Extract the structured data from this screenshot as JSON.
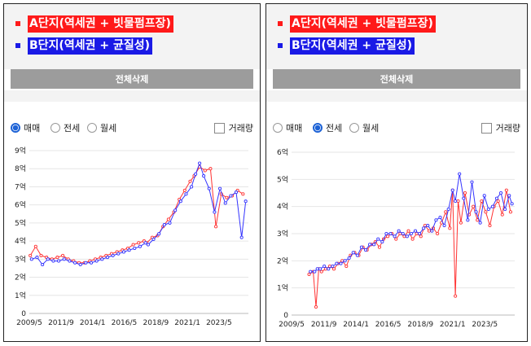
{
  "legend": {
    "a_label": "A단지(역세권 + 빗물펌프장)",
    "b_label": "B단지(역세권 + 균질성)",
    "a_color": "#ff1a1a",
    "b_color": "#1a1ae6"
  },
  "button": {
    "clear_all": "전체삭제"
  },
  "options": {
    "sale": "매매",
    "jeonse": "전세",
    "monthly": "월세",
    "volume": "거래량"
  },
  "left": {
    "selected": "sale"
  },
  "right": {
    "selected": "jeonse"
  },
  "chart_data": [
    {
      "type": "line",
      "title": "",
      "ylim": [
        0,
        9
      ],
      "y_ticks": [
        "0",
        "1억",
        "2억",
        "3억",
        "4억",
        "5억",
        "6억",
        "7억",
        "8억",
        "9억"
      ],
      "x_ticks": [
        "2009/5",
        "2011/9",
        "2014/1",
        "2016/5",
        "2018/9",
        "2021/1",
        "2023/5"
      ],
      "x_tick_years": [
        2009.33,
        2011.67,
        2014.0,
        2016.33,
        2018.67,
        2021.0,
        2023.33
      ],
      "xlim": [
        2009.33,
        2025.5
      ],
      "series": [
        {
          "color": "#ff3333",
          "x": [
            2009.4,
            2009.8,
            2010.2,
            2010.6,
            2011.0,
            2011.4,
            2011.8,
            2012.2,
            2012.6,
            2013.0,
            2013.4,
            2013.8,
            2014.2,
            2014.6,
            2015.0,
            2015.4,
            2015.8,
            2016.2,
            2016.6,
            2017.0,
            2017.4,
            2017.8,
            2018.0,
            2018.4,
            2018.8,
            2019.2,
            2019.6,
            2020.0,
            2020.4,
            2020.8,
            2021.2,
            2021.5,
            2021.9,
            2022.3,
            2022.7,
            2023.1,
            2023.5,
            2023.9,
            2024.3,
            2024.7,
            2025.1
          ],
          "y": [
            3.2,
            3.7,
            3.2,
            3.1,
            3.0,
            3.1,
            3.2,
            3.0,
            2.9,
            2.8,
            2.8,
            2.9,
            3.0,
            3.1,
            3.2,
            3.3,
            3.4,
            3.5,
            3.6,
            3.8,
            3.9,
            4.0,
            3.9,
            4.2,
            4.3,
            4.8,
            5.2,
            5.6,
            6.3,
            6.8,
            7.3,
            7.6,
            8.1,
            7.9,
            8.0,
            4.8,
            6.6,
            6.4,
            6.5,
            6.8,
            6.6
          ]
        },
        {
          "color": "#3333ff",
          "x": [
            2009.5,
            2009.9,
            2010.3,
            2010.7,
            2011.1,
            2011.5,
            2011.9,
            2012.3,
            2012.7,
            2013.1,
            2013.5,
            2013.9,
            2014.3,
            2014.7,
            2015.1,
            2015.5,
            2015.9,
            2016.3,
            2016.7,
            2017.1,
            2017.5,
            2017.9,
            2018.1,
            2018.5,
            2018.9,
            2019.3,
            2019.7,
            2020.1,
            2020.5,
            2020.9,
            2021.3,
            2021.6,
            2021.9,
            2022.2,
            2022.6,
            2023.0,
            2023.4,
            2023.8,
            2024.2,
            2024.6,
            2025.0,
            2025.3
          ],
          "y": [
            3.0,
            3.1,
            2.7,
            3.0,
            2.9,
            2.9,
            3.0,
            2.9,
            2.8,
            2.7,
            2.8,
            2.8,
            2.9,
            3.0,
            3.1,
            3.2,
            3.3,
            3.4,
            3.5,
            3.6,
            3.7,
            3.9,
            3.8,
            4.1,
            4.4,
            4.9,
            5.0,
            5.7,
            6.2,
            6.6,
            7.0,
            7.7,
            8.3,
            7.6,
            6.9,
            5.6,
            6.9,
            6.1,
            6.5,
            6.7,
            4.2,
            6.2
          ]
        }
      ]
    },
    {
      "type": "line",
      "title": "",
      "ylim": [
        0,
        6
      ],
      "y_ticks": [
        "0",
        "1억",
        "2억",
        "3억",
        "4억",
        "5억",
        "6억"
      ],
      "x_ticks": [
        "2009/5",
        "2011/9",
        "2014/1",
        "2016/5",
        "2018/9",
        "2021/1",
        "2023/5"
      ],
      "x_tick_years": [
        2009.33,
        2011.67,
        2014.0,
        2016.33,
        2018.67,
        2021.0,
        2023.33
      ],
      "xlim": [
        2009.33,
        2025.5
      ],
      "series": [
        {
          "color": "#ff3333",
          "x": [
            2010.6,
            2010.9,
            2011.1,
            2011.3,
            2011.5,
            2011.8,
            2012.1,
            2012.4,
            2012.7,
            2013.0,
            2013.3,
            2013.6,
            2013.9,
            2014.2,
            2014.5,
            2014.8,
            2015.1,
            2015.4,
            2015.7,
            2016.0,
            2016.3,
            2016.6,
            2016.9,
            2017.2,
            2017.5,
            2017.8,
            2018.1,
            2018.4,
            2018.7,
            2019.0,
            2019.3,
            2019.6,
            2019.9,
            2020.2,
            2020.5,
            2020.8,
            2021.0,
            2021.2,
            2021.4,
            2021.6,
            2021.9,
            2022.2,
            2022.5,
            2022.8,
            2023.1,
            2023.4,
            2023.7,
            2024.0,
            2024.3,
            2024.6,
            2024.9,
            2025.2
          ],
          "y": [
            1.5,
            1.6,
            0.3,
            1.7,
            1.6,
            1.7,
            1.8,
            1.7,
            1.9,
            2.0,
            1.8,
            2.2,
            2.3,
            2.2,
            2.5,
            2.4,
            2.6,
            2.7,
            2.5,
            2.8,
            2.9,
            3.0,
            2.8,
            3.0,
            2.9,
            3.1,
            2.8,
            3.0,
            2.9,
            3.3,
            3.1,
            3.2,
            3.0,
            3.4,
            3.8,
            3.2,
            4.6,
            0.7,
            4.2,
            3.4,
            4.5,
            3.7,
            4.0,
            3.5,
            4.2,
            3.8,
            3.3,
            4.0,
            4.2,
            3.7,
            4.6,
            3.8
          ]
        },
        {
          "color": "#3333ff",
          "x": [
            2010.7,
            2011.0,
            2011.2,
            2011.4,
            2011.7,
            2012.0,
            2012.3,
            2012.6,
            2012.9,
            2013.2,
            2013.5,
            2013.8,
            2014.1,
            2014.4,
            2014.7,
            2015.0,
            2015.3,
            2015.6,
            2015.9,
            2016.2,
            2016.5,
            2016.8,
            2017.1,
            2017.4,
            2017.7,
            2018.0,
            2018.3,
            2018.6,
            2018.9,
            2019.2,
            2019.5,
            2019.8,
            2020.1,
            2020.4,
            2020.7,
            2021.0,
            2021.2,
            2021.5,
            2021.8,
            2022.1,
            2022.4,
            2022.7,
            2023.0,
            2023.3,
            2023.6,
            2023.9,
            2024.2,
            2024.5,
            2024.8,
            2025.1,
            2025.3
          ],
          "y": [
            1.6,
            1.6,
            1.7,
            1.7,
            1.8,
            1.7,
            1.8,
            1.9,
            1.9,
            2.0,
            2.1,
            2.3,
            2.2,
            2.5,
            2.4,
            2.6,
            2.6,
            2.8,
            2.7,
            3.0,
            3.0,
            2.9,
            3.1,
            3.0,
            2.9,
            3.0,
            3.1,
            3.0,
            3.2,
            3.3,
            3.1,
            3.5,
            3.6,
            3.3,
            3.9,
            4.6,
            4.2,
            5.2,
            4.3,
            3.5,
            4.9,
            3.8,
            3.4,
            4.4,
            3.9,
            4.0,
            4.3,
            4.5,
            3.9,
            4.4,
            4.1
          ]
        }
      ]
    }
  ]
}
